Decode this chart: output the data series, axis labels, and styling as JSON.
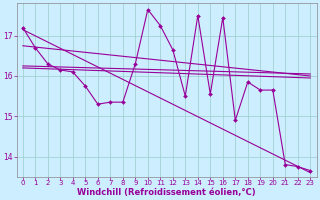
{
  "x": [
    0,
    1,
    2,
    3,
    4,
    5,
    6,
    7,
    8,
    9,
    10,
    11,
    12,
    13,
    14,
    15,
    16,
    17,
    18,
    19,
    20,
    21,
    22,
    23
  ],
  "line_zigzag": [
    17.2,
    16.7,
    16.3,
    16.15,
    16.1,
    15.75,
    15.3,
    15.35,
    15.35,
    16.3,
    17.65,
    17.25,
    16.65,
    15.5,
    17.5,
    15.55,
    17.45,
    14.9,
    15.85,
    15.65,
    15.65,
    13.8,
    13.75,
    13.65
  ],
  "line_trend1_start": 16.75,
  "line_trend1_end": 16.0,
  "line_trend2_start": 16.2,
  "line_trend2_end": 15.95,
  "line_trend3_start": 16.25,
  "line_trend3_end": 16.05,
  "line_color": "#990099",
  "bg_color": "#cceeff",
  "grid_color": "#99cccc",
  "ylim": [
    13.5,
    17.8
  ],
  "xlim": [
    -0.5,
    23.5
  ],
  "yticks": [
    14,
    15,
    16,
    17
  ],
  "xticks": [
    0,
    1,
    2,
    3,
    4,
    5,
    6,
    7,
    8,
    9,
    10,
    11,
    12,
    13,
    14,
    15,
    16,
    17,
    18,
    19,
    20,
    21,
    22,
    23
  ],
  "xlabel": "Windchill (Refroidissement éolien,°C)"
}
